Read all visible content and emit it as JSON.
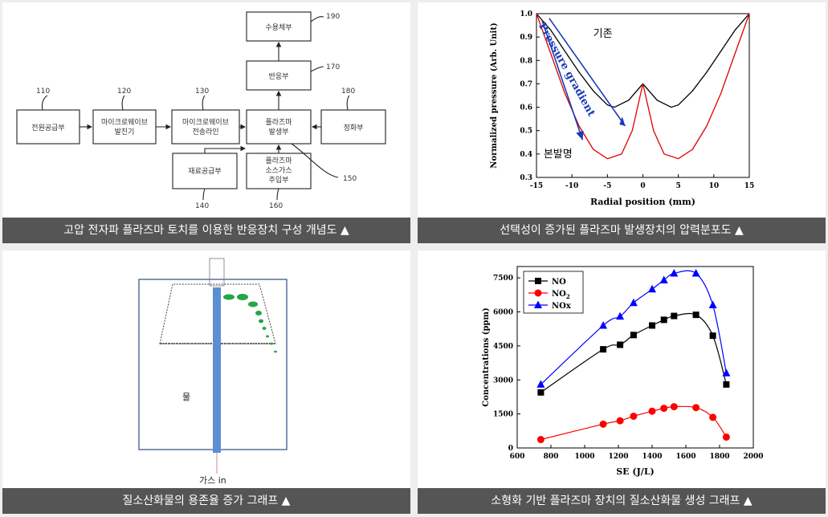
{
  "panels": {
    "block_diagram": {
      "caption": "고압 전자파 플라즈마 토치를 이용한 반응장치 구성 개념도 ▲",
      "blocks": {
        "power": "전원공급부",
        "generator_l1": "마이크로웨이브",
        "generator_l2": "발진기",
        "line_l1": "마이크로웨이브",
        "line_l2": "전송라인",
        "plasma_l1": "플라즈마",
        "plasma_l2": "발생부",
        "reaction": "반응부",
        "collector": "수용체부",
        "purifier": "정화부",
        "material": "재료공급부",
        "gas_l1": "플라즈마",
        "gas_l2": "소스가스",
        "gas_l3": "주입부"
      },
      "labels": {
        "n110": "110",
        "n120": "120",
        "n130": "130",
        "n140": "140",
        "n150": "150",
        "n160": "160",
        "n170": "170",
        "n180": "180",
        "n190": "190"
      }
    },
    "pressure_chart": {
      "caption": "선택성이 증가된 플라즈마 발생장치의 압력분포도 ▲"
    },
    "schematic": {
      "caption": "질소산화물의 용존율 증가 그래프 ▲",
      "water_label": "물",
      "gas_label": "가스 in"
    },
    "concentration_chart": {
      "caption": "소형화 기반 플라즈마 장치의 질소산화물 생성 그래프 ▲"
    }
  },
  "chart_data": [
    {
      "type": "line",
      "xlabel": "Radial position (mm)",
      "ylabel": "Normalized pressure (Arb. Unit)",
      "xlim": [
        -15,
        15
      ],
      "ylim": [
        0.3,
        1.0
      ],
      "xticks": [
        "-15",
        "-10",
        "-5",
        "0",
        "5",
        "10",
        "15"
      ],
      "yticks": [
        "0.3",
        "0.4",
        "0.5",
        "0.6",
        "0.7",
        "0.8",
        "0.9",
        "1.0"
      ],
      "annotations": {
        "gradient": "Pressure gradient",
        "existing": "기존",
        "invention": "본발명"
      },
      "series": [
        {
          "name": "기존",
          "color": "#000000",
          "x": [
            -15,
            -13,
            -11,
            -9,
            -7,
            -5,
            -4,
            -2,
            0,
            2,
            4,
            5,
            7,
            9,
            11,
            13,
            15
          ],
          "y": [
            1.0,
            0.93,
            0.84,
            0.75,
            0.67,
            0.61,
            0.6,
            0.63,
            0.7,
            0.63,
            0.6,
            0.61,
            0.67,
            0.75,
            0.84,
            0.93,
            1.0
          ]
        },
        {
          "name": "본발명",
          "color": "#e00000",
          "x": [
            -15,
            -13,
            -11,
            -9,
            -7,
            -5,
            -3,
            -1.5,
            0,
            1.5,
            3,
            5,
            7,
            9,
            11,
            13,
            15
          ],
          "y": [
            1.0,
            0.83,
            0.66,
            0.52,
            0.42,
            0.38,
            0.4,
            0.5,
            0.7,
            0.5,
            0.4,
            0.38,
            0.42,
            0.52,
            0.66,
            0.83,
            1.0
          ]
        }
      ]
    },
    {
      "type": "line",
      "xlabel": "SE (J/L)",
      "ylabel": "Concentrations (ppm)",
      "xlim": [
        600,
        2000
      ],
      "ylim": [
        0,
        8000
      ],
      "xticks": [
        "600",
        "800",
        "1000",
        "1200",
        "1400",
        "1600",
        "1800",
        "2000"
      ],
      "yticks": [
        "0",
        "1500",
        "3000",
        "4500",
        "6000",
        "7500"
      ],
      "series": [
        {
          "name": "NO",
          "label": "NO",
          "color": "#000000",
          "marker": "square",
          "x": [
            740,
            1110,
            1210,
            1290,
            1400,
            1470,
            1530,
            1660,
            1760,
            1840
          ],
          "y": [
            2450,
            4350,
            4550,
            4980,
            5400,
            5650,
            5820,
            5870,
            4950,
            2800
          ]
        },
        {
          "name": "NO2",
          "label": "NO",
          "sub": "2",
          "color": "#ff0000",
          "marker": "circle",
          "x": [
            740,
            1110,
            1210,
            1290,
            1400,
            1470,
            1530,
            1660,
            1760,
            1840
          ],
          "y": [
            370,
            1050,
            1200,
            1400,
            1620,
            1750,
            1820,
            1780,
            1350,
            480
          ]
        },
        {
          "name": "NOx",
          "label": "NOx",
          "color": "#0000ff",
          "marker": "triangle",
          "x": [
            740,
            1110,
            1210,
            1290,
            1400,
            1470,
            1530,
            1660,
            1760,
            1840
          ],
          "y": [
            2800,
            5400,
            5800,
            6400,
            7000,
            7400,
            7700,
            7700,
            6300,
            3300
          ]
        }
      ]
    }
  ]
}
